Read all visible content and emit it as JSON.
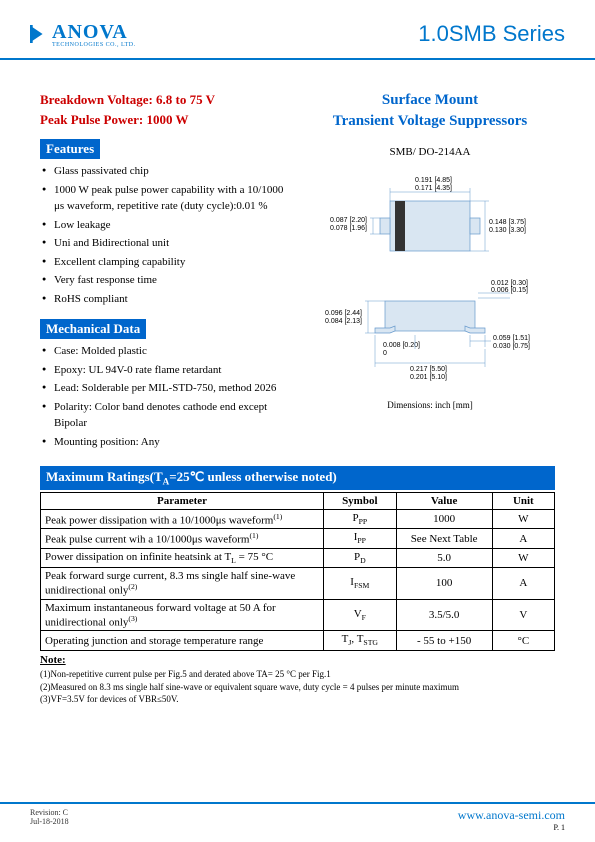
{
  "header": {
    "logo_name": "ANOVA",
    "logo_sub": "TECHNOLOGIES CO., LTD.",
    "logo_color_primary": "#0077cc",
    "series": "1.0SMB Series"
  },
  "left": {
    "spec1": "Breakdown Voltage: 6.8 to 75 V",
    "spec2": "Peak Pulse Power: 1000 W",
    "features_title": "Features",
    "features": [
      "Glass passivated chip",
      "1000 W peak pulse power capability with a 10/1000 μs waveform, repetitive rate (duty cycle):0.01 %",
      "Low leakage",
      "Uni and Bidirectional unit",
      "Excellent clamping capability",
      "Very fast response time",
      "RoHS compliant"
    ],
    "mech_title": "Mechanical Data",
    "mech": [
      "Case: Molded plastic",
      "Epoxy: UL 94V-0 rate flame retardant",
      "Lead: Solderable per MIL-STD-750, method 2026",
      "Polarity: Color band denotes cathode end except Bipolar",
      "Mounting position: Any"
    ]
  },
  "right": {
    "title1": "Surface Mount",
    "title2": "Transient Voltage Suppressors",
    "package": "SMB/ DO-214AA",
    "dim_note": "Dimensions: inch [mm]",
    "top_view": {
      "dims": {
        "w1": "0.191 [4.85]",
        "w2": "0.171 [4.35]",
        "h1": "0.148 [3.75]",
        "h2": "0.130 [3.30]",
        "lh1": "0.087 [2.20]",
        "lh2": "0.078 [1.96]"
      }
    },
    "side_view": {
      "dims": {
        "th1": "0.012 [0.30]",
        "th2": "0.006 [0.15]",
        "h1": "0.096 [2.44]",
        "h2": "0.084 [2.13]",
        "g1": "0.008 [0.20]",
        "g2": "0",
        "l1": "0.059 [1.51]",
        "l2": "0.030 [0.75]",
        "w1": "0.217 [5.50]",
        "w2": "0.201 [5.10]"
      }
    }
  },
  "ratings": {
    "header": "Maximum Ratings(T",
    "header_sub": "A",
    "header_rest": "=25℃ unless otherwise noted)",
    "cols": [
      "Parameter",
      "Symbol",
      "Value",
      "Unit"
    ],
    "rows": [
      {
        "p": "Peak power dissipation with a 10/1000μs waveform",
        "sup": "(1)",
        "s": "P",
        "ssub": "PP",
        "v": "1000",
        "u": "W"
      },
      {
        "p": "Peak pulse current wih a 10/1000μs waveform",
        "sup": "(1)",
        "s": "I",
        "ssub": "PP",
        "v": "See Next Table",
        "u": "A"
      },
      {
        "p": "Power dissipation on infinite heatsink at T",
        "psub": "L",
        "prest": " = 75 °C",
        "s": "P",
        "ssub": "D",
        "v": "5.0",
        "u": "W"
      },
      {
        "p": "Peak forward surge current, 8.3 ms single half sine-wave unidirectional only",
        "sup": "(2)",
        "s": "I",
        "ssub": "FSM",
        "v": "100",
        "u": "A"
      },
      {
        "p": "Maximum instantaneous forward voltage at 50 A for unidirectional only",
        "sup": "(3)",
        "s": "V",
        "ssub": "F",
        "v": "3.5/5.0",
        "u": "V"
      },
      {
        "p": "Operating junction and storage temperature range",
        "s": "T",
        "ssub": "J",
        "s2": ", T",
        "ssub2": "STG",
        "v": "- 55 to +150",
        "u": "°C"
      }
    ]
  },
  "notes": {
    "title": "Note:",
    "items": [
      "(1)Non-repetitive current pulse per Fig.5 and derated above TA= 25 °C per Fig.1",
      "(2)Measured on 8.3 ms single half sine-wave or equivalent square wave, duty cycle = 4 pulses per minute maximum",
      "(3)VF=3.5V for devices of VBR≤50V."
    ]
  },
  "footer": {
    "rev": "Revision: C",
    "date": "Jul-18-2018",
    "url": "www.anova-semi.com",
    "page": "P. 1"
  }
}
